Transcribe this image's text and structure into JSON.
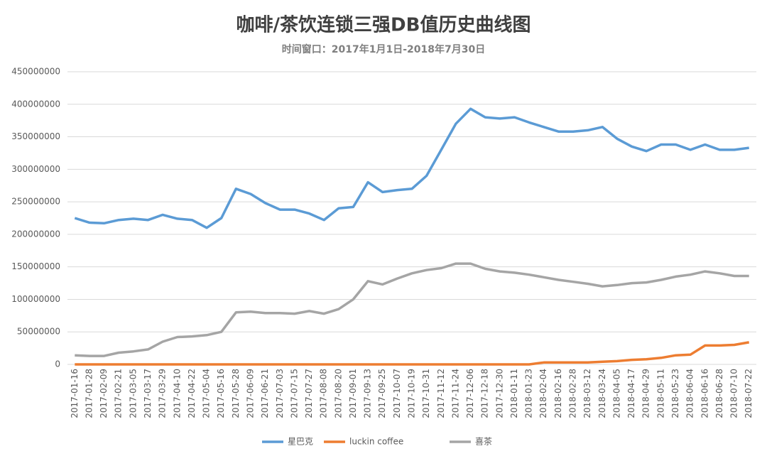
{
  "chart_data": {
    "type": "line",
    "title": "咖啡/茶饮连锁三强DB值历史曲线图",
    "subtitle": "时间窗口：2017年1月1日-2018年7月30日",
    "categories": [
      "2017-01-16",
      "2017-01-28",
      "2017-02-09",
      "2017-02-21",
      "2017-03-05",
      "2017-03-17",
      "2017-03-29",
      "2017-04-10",
      "2017-04-22",
      "2017-05-04",
      "2017-05-16",
      "2017-05-28",
      "2017-06-09",
      "2017-06-21",
      "2017-07-03",
      "2017-07-15",
      "2017-07-27",
      "2017-08-08",
      "2017-08-20",
      "2017-09-01",
      "2017-09-13",
      "2017-09-25",
      "2017-10-07",
      "2017-10-19",
      "2017-10-31",
      "2017-11-12",
      "2017-11-24",
      "2017-12-06",
      "2017-12-18",
      "2017-12-30",
      "2018-01-11",
      "2018-01-23",
      "2018-02-04",
      "2018-02-16",
      "2018-02-28",
      "2018-03-12",
      "2018-03-24",
      "2018-04-05",
      "2018-04-17",
      "2018-04-29",
      "2018-05-11",
      "2018-05-23",
      "2018-06-04",
      "2018-06-16",
      "2018-06-28",
      "2018-07-10",
      "2018-07-22"
    ],
    "series": [
      {
        "name": "星巴克",
        "color": "#5b9bd5",
        "values": [
          225000000,
          218000000,
          217000000,
          222000000,
          224000000,
          222000000,
          230000000,
          224000000,
          222000000,
          210000000,
          225000000,
          270000000,
          262000000,
          248000000,
          238000000,
          238000000,
          232000000,
          222000000,
          240000000,
          242000000,
          280000000,
          265000000,
          268000000,
          270000000,
          290000000,
          330000000,
          370000000,
          393000000,
          380000000,
          378000000,
          380000000,
          372000000,
          365000000,
          358000000,
          358000000,
          360000000,
          365000000,
          347000000,
          335000000,
          328000000,
          338000000,
          338000000,
          330000000,
          338000000,
          330000000,
          330000000,
          333000000
        ]
      },
      {
        "name": "luckin coffee",
        "color": "#ed7d31",
        "values": [
          0,
          0,
          0,
          0,
          0,
          0,
          0,
          0,
          0,
          0,
          0,
          0,
          0,
          0,
          0,
          0,
          0,
          0,
          0,
          0,
          0,
          0,
          0,
          0,
          0,
          0,
          0,
          0,
          0,
          0,
          0,
          0,
          3000000,
          3000000,
          3000000,
          3000000,
          4000000,
          5000000,
          7000000,
          8000000,
          10000000,
          14000000,
          15000000,
          29000000,
          29000000,
          30000000,
          34000000
        ]
      },
      {
        "name": "喜茶",
        "color": "#a5a5a5",
        "values": [
          14000000,
          13000000,
          13000000,
          18000000,
          20000000,
          23000000,
          35000000,
          42000000,
          43000000,
          45000000,
          50000000,
          80000000,
          81000000,
          79000000,
          79000000,
          78000000,
          82000000,
          78000000,
          85000000,
          100000000,
          128000000,
          123000000,
          132000000,
          140000000,
          145000000,
          148000000,
          155000000,
          155000000,
          147000000,
          143000000,
          141000000,
          138000000,
          134000000,
          130000000,
          127000000,
          124000000,
          120000000,
          122000000,
          125000000,
          126000000,
          130000000,
          135000000,
          138000000,
          143000000,
          140000000,
          136000000,
          136000000
        ]
      }
    ],
    "ylim": [
      0,
      450000000
    ],
    "yticks": [
      0,
      50000000,
      100000000,
      150000000,
      200000000,
      250000000,
      300000000,
      350000000,
      400000000,
      450000000
    ],
    "grid": true,
    "legend": "bottom"
  }
}
